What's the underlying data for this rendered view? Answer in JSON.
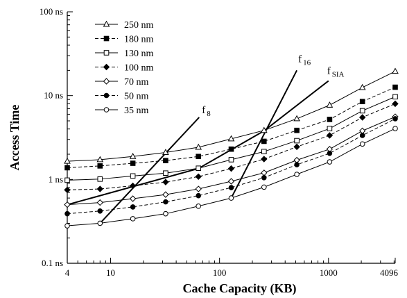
{
  "chart_data": {
    "type": "line",
    "xlabel": "Cache Capacity (KB)",
    "ylabel": "Access Time",
    "xscale": "log",
    "yscale": "log",
    "xlim": [
      4,
      4096
    ],
    "ylim": [
      0.1,
      100
    ],
    "x_ticks": [
      {
        "value": 4,
        "label": "4"
      },
      {
        "value": 10,
        "label": "10"
      },
      {
        "value": 100,
        "label": "100"
      },
      {
        "value": 1000,
        "label": "1000"
      },
      {
        "value": 4096,
        "label": "4096"
      }
    ],
    "y_ticks": [
      {
        "value": 0.1,
        "label": "0.1 ns"
      },
      {
        "value": 1,
        "label": "1 ns"
      },
      {
        "value": 10,
        "label": "10 ns"
      },
      {
        "value": 100,
        "label": "100 ns"
      }
    ],
    "grid": false,
    "legend_position": "top-left",
    "x": [
      4,
      8,
      16,
      32,
      64,
      128,
      256,
      512,
      1024,
      2048,
      4096
    ],
    "series": [
      {
        "name": "250 nm",
        "marker": "triangle-open",
        "dash": "solid",
        "values": [
          1.65,
          1.72,
          1.88,
          2.1,
          2.42,
          3.05,
          3.85,
          5.3,
          7.7,
          12.5,
          19.5
        ]
      },
      {
        "name": "180 nm",
        "marker": "square-filled",
        "dash": "dashed",
        "values": [
          1.38,
          1.45,
          1.56,
          1.68,
          1.88,
          2.3,
          2.85,
          3.85,
          5.2,
          8.5,
          12.6
        ]
      },
      {
        "name": "130 nm",
        "marker": "square-open",
        "dash": "solid",
        "values": [
          0.98,
          1.01,
          1.1,
          1.19,
          1.36,
          1.72,
          2.15,
          2.9,
          4.05,
          6.6,
          9.7
        ]
      },
      {
        "name": "100 nm",
        "marker": "diamond-filled",
        "dash": "dashed",
        "values": [
          0.75,
          0.77,
          0.84,
          0.93,
          1.08,
          1.35,
          1.75,
          2.45,
          3.35,
          5.5,
          8.0
        ]
      },
      {
        "name": "70 nm",
        "marker": "diamond-open",
        "dash": "solid",
        "values": [
          0.5,
          0.53,
          0.59,
          0.66,
          0.77,
          0.95,
          1.2,
          1.7,
          2.3,
          3.8,
          5.6
        ]
      },
      {
        "name": "50 nm",
        "marker": "circle-filled",
        "dash": "dashed",
        "values": [
          0.39,
          0.42,
          0.47,
          0.54,
          0.64,
          0.8,
          1.05,
          1.5,
          2.05,
          3.35,
          5.3
        ]
      },
      {
        "name": "35 nm",
        "marker": "circle-open",
        "dash": "solid",
        "values": [
          0.28,
          0.3,
          0.34,
          0.39,
          0.48,
          0.6,
          0.81,
          1.15,
          1.62,
          2.65,
          4.05
        ]
      }
    ],
    "reference_lines": [
      {
        "label": "f",
        "subscript": "8",
        "points": [
          [
            8,
            0.3
          ],
          [
            65,
            5.5
          ]
        ]
      },
      {
        "label": "f",
        "subscript": "16",
        "points": [
          [
            128,
            0.6
          ],
          [
            512,
            20
          ]
        ]
      },
      {
        "label": "f",
        "subscript": "SIA",
        "points": [
          [
            4,
            0.5
          ],
          [
            64,
            1.35
          ],
          [
            256,
            3.8
          ],
          [
            1000,
            15
          ]
        ]
      }
    ]
  },
  "colors": {
    "line": "#000000",
    "background": "#ffffff"
  }
}
